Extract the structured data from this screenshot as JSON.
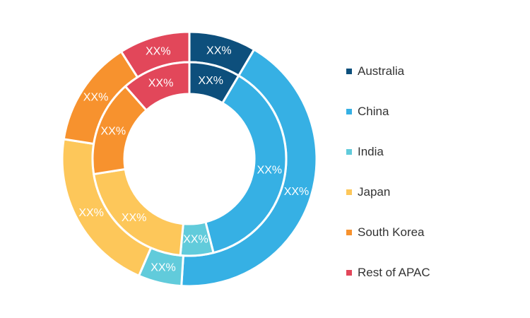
{
  "chart_data": {
    "type": "pie",
    "variant": "nested-donut",
    "categories": [
      "Australia",
      "China",
      "India",
      "Japan",
      "South Korea",
      "Rest of APAC"
    ],
    "colors": [
      "#0d4f7c",
      "#36b0e4",
      "#61cbdb",
      "#fdc75a",
      "#f7922e",
      "#e2475a"
    ],
    "series": [
      {
        "values": [
          8.5,
          37.5,
          5.5,
          21.0,
          16.0,
          11.5
        ],
        "slice_labels": [
          "XX%",
          "XX%",
          "XX%",
          "XX%",
          "XX%",
          "XX%"
        ]
      },
      {
        "values": [
          8.5,
          42.5,
          5.5,
          21.0,
          13.5,
          9.0
        ],
        "slice_labels": [
          "XX%",
          "XX%",
          "XX%",
          "XX%",
          "XX%",
          "XX%"
        ]
      }
    ],
    "legend": {
      "position": "right",
      "entries": [
        "Australia",
        "China",
        "India",
        "Japan",
        "South Korea",
        "Rest of APAC"
      ]
    },
    "title": "",
    "xlabel": "",
    "ylabel": ""
  }
}
